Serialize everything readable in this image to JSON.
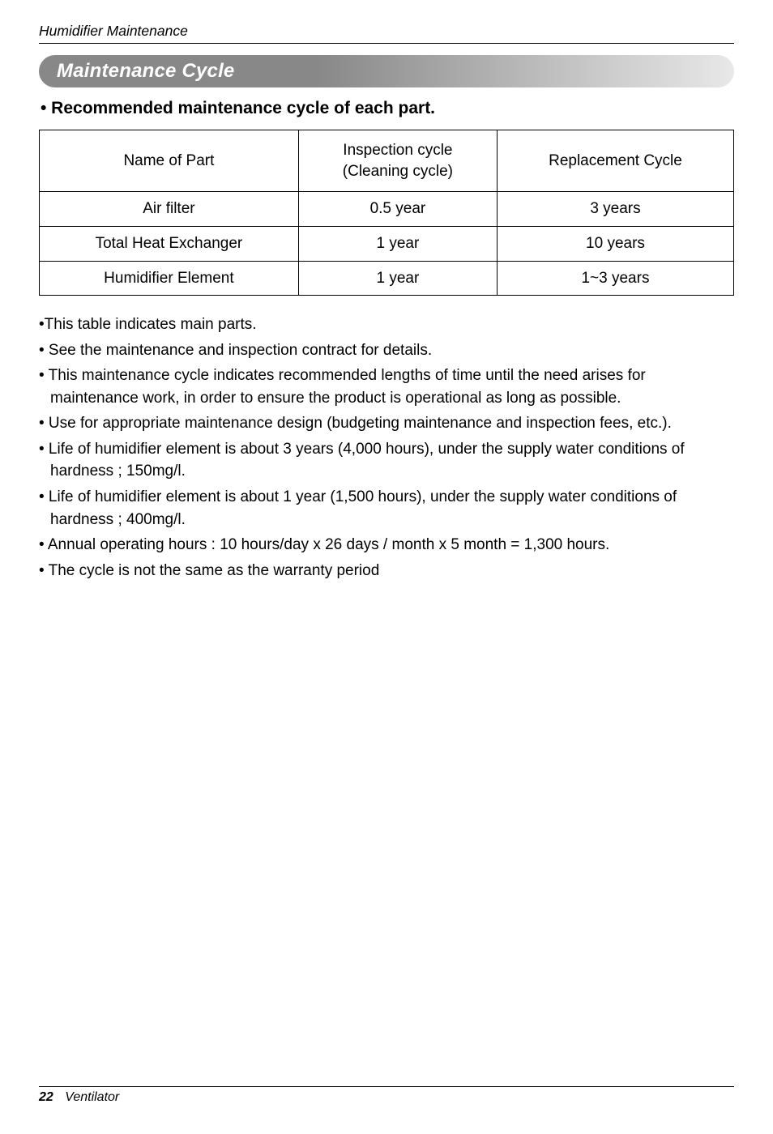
{
  "page": {
    "running_header": "Humidifier Maintenance",
    "section_title": "Maintenance Cycle",
    "subheading": "• Recommended maintenance cycle of each part.",
    "footer": {
      "page_number": "22",
      "product": "Ventilator"
    }
  },
  "table": {
    "type": "table",
    "border_color": "#000000",
    "background_color": "#ffffff",
    "font_size_pt": 14,
    "columns": [
      {
        "label": "Name of Part",
        "width_pct": 33.3,
        "align": "center"
      },
      {
        "label": "Inspection cycle\n(Cleaning cycle)",
        "width_pct": 33.3,
        "align": "center"
      },
      {
        "label": "Replacement Cycle",
        "width_pct": 33.4,
        "align": "center"
      }
    ],
    "rows": [
      [
        "Air filter",
        "0.5 year",
        "3 years"
      ],
      [
        "Total Heat Exchanger",
        "1 year",
        "10 years"
      ],
      [
        "Humidifier Element",
        "1 year",
        "1~3 years"
      ]
    ]
  },
  "notes": [
    "•This table indicates main parts.",
    "• See the maintenance and inspection contract for details.",
    "• This maintenance cycle indicates recommended lengths of time until the need arises for maintenance work, in order to ensure the product is operational as long as possible.",
    "• Use for appropriate maintenance design (budgeting maintenance and inspection fees, etc.).",
    "• Life of humidifier element is about 3 years (4,000 hours), under the supply water conditions of hardness ; 150mg/l.",
    "• Life of humidifier element is about 1 year (1,500 hours), under the supply water conditions of hardness ; 400mg/l.",
    "• Annual operating hours : 10 hours/day x 26 days / month x 5 month = 1,300 hours.",
    "• The cycle is not the same as the warranty period"
  ],
  "styles": {
    "page_bg": "#ffffff",
    "text_color": "#000000",
    "pill_gradient_from": "#888888",
    "pill_gradient_to": "#e8e8e8",
    "pill_text_color": "#ffffff",
    "rule_color": "#000000",
    "body_font_size_pt": 14,
    "heading_font_size_pt": 18,
    "subhead_font_size_pt": 16
  }
}
